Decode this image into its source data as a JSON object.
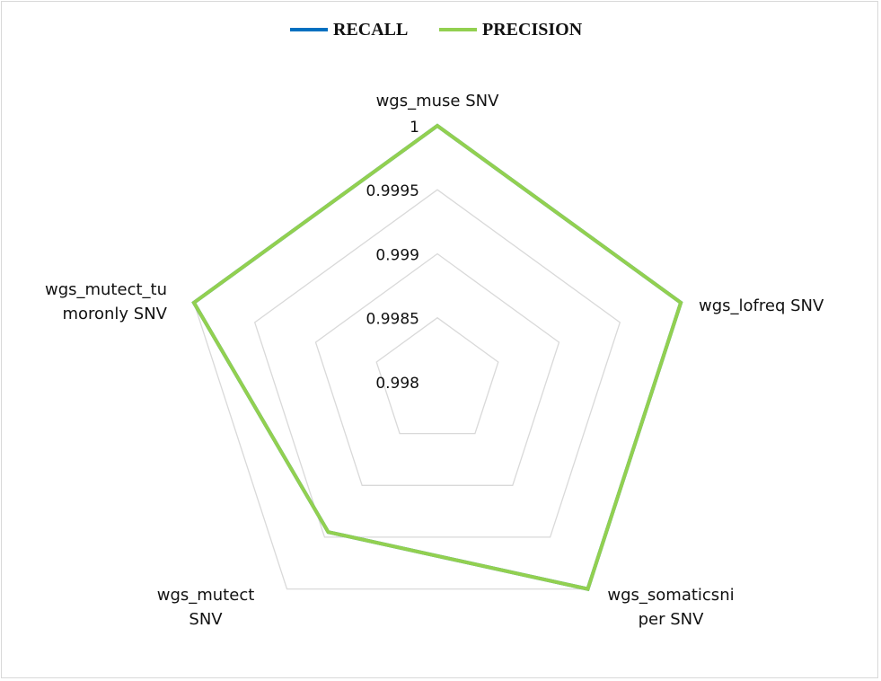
{
  "chart_data": {
    "type": "radar",
    "categories": [
      [
        "wgs_muse SNV"
      ],
      [
        "wgs_lofreq SNV"
      ],
      [
        "wgs_somaticsni",
        "per SNV"
      ],
      [
        "wgs_mutect",
        "SNV"
      ],
      [
        "wgs_mutect_tu",
        "moronly SNV"
      ]
    ],
    "rlim": [
      0.998,
      1
    ],
    "ticks": [
      "1",
      "0.9995",
      "0.999",
      "0.9985",
      "0.998"
    ],
    "tick_values": [
      1,
      0.9995,
      0.999,
      0.9985,
      0.998
    ],
    "legend_position": "top",
    "series": [
      {
        "name": "RECALL",
        "color": "#0070c0",
        "values": [
          1,
          1,
          1,
          0.99945,
          1
        ]
      },
      {
        "name": "PRECISION",
        "color": "#92d050",
        "values": [
          1,
          1,
          1,
          0.99945,
          1
        ]
      }
    ],
    "grid_color": "#d9d9d9"
  }
}
